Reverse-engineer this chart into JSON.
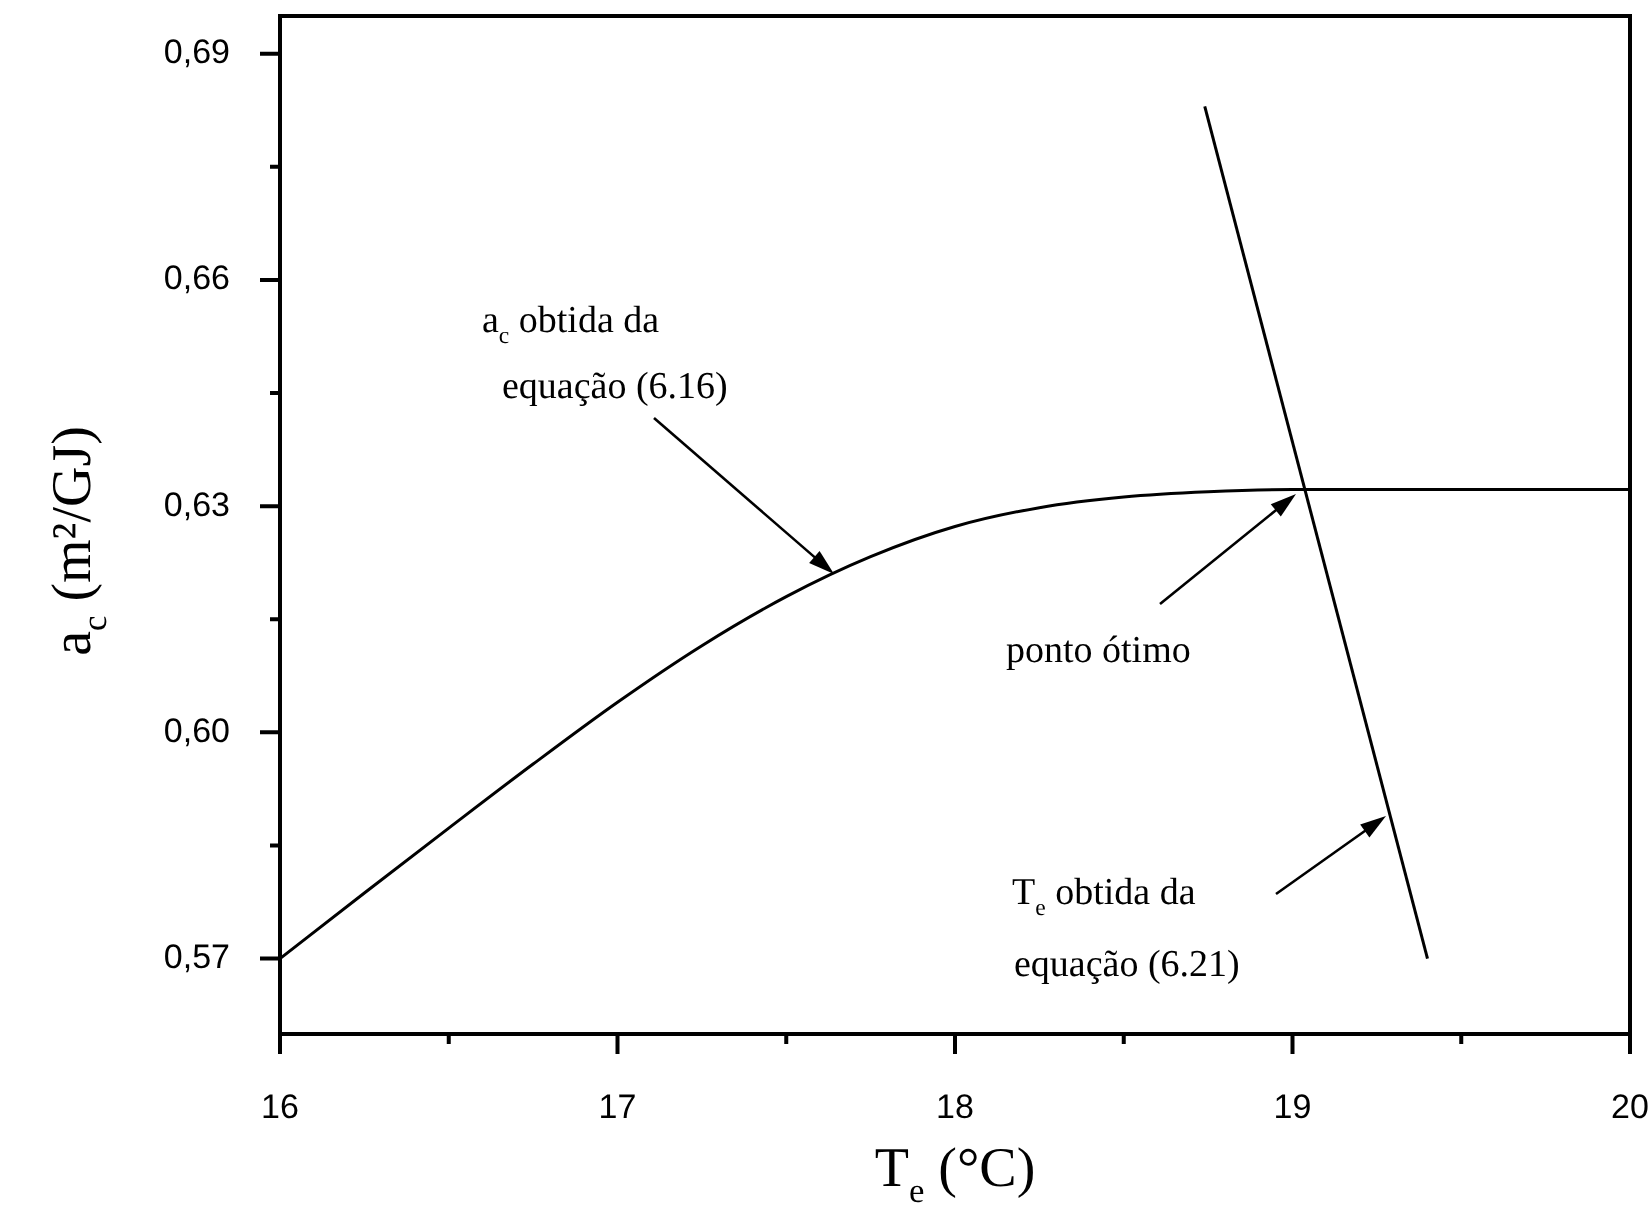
{
  "chart_data": {
    "type": "line",
    "xlabel": "T$_{e}$ (°C)",
    "ylabel": "a$_{c}$ (m²/GJ)",
    "xlim": [
      16,
      20
    ],
    "ylim": [
      0.56,
      0.695
    ],
    "xticks": [
      16,
      {
        "value": 16.5,
        "label": null
      },
      17,
      {
        "value": 17.5,
        "label": null
      },
      18,
      {
        "value": 18.5,
        "label": null
      },
      19,
      {
        "value": 19.5,
        "label": null
      },
      20
    ],
    "yticks": [
      {
        "value": 0.57,
        "label": "0,57"
      },
      {
        "value": 0.585,
        "label": null
      },
      {
        "value": 0.6,
        "label": "0,60"
      },
      {
        "value": 0.615,
        "label": null
      },
      {
        "value": 0.63,
        "label": "0,63"
      },
      {
        "value": 0.645,
        "label": null
      },
      {
        "value": 0.66,
        "label": "0,66"
      },
      {
        "value": 0.675,
        "label": null
      },
      {
        "value": 0.69,
        "label": "0,69"
      }
    ],
    "marker": "none",
    "line_style": "solid",
    "series": [
      {
        "color": "#000000",
        "x": [
          16,
          16.25,
          16.5,
          16.75,
          17,
          17.25,
          17.5,
          17.75,
          18,
          18.25,
          18.5,
          18.75,
          19,
          19.5,
          20
        ],
        "values": [
          0.57,
          0.5787,
          0.5873,
          0.5958,
          0.604,
          0.6115,
          0.618,
          0.6233,
          0.6273,
          0.6298,
          0.6312,
          0.6319,
          0.6322,
          0.6322,
          0.6322
        ]
      },
      {
        "color": "#000000",
        "x": [
          18.74,
          19.4
        ],
        "values": [
          0.683,
          0.57
        ]
      }
    ],
    "annotations": [
      "a$_{c}$ obtida da\nequação (6.16)",
      "ponto ótimo",
      "T$_{e}$ obtida da\nequação (6.21)"
    ]
  }
}
